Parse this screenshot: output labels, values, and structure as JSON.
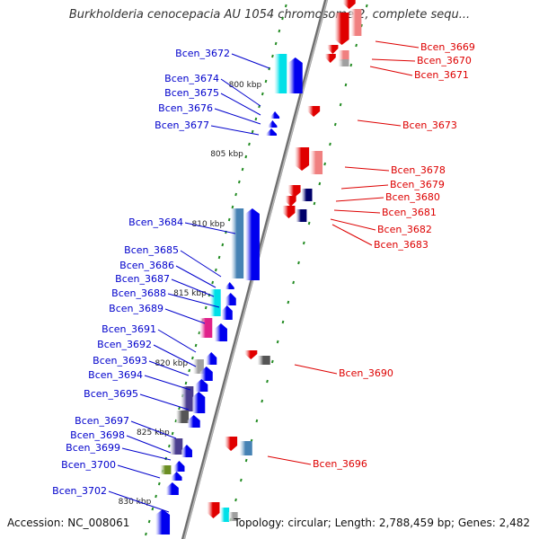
{
  "title": "Burkholderia cenocepacia AU 1054 chromosome 2, complete sequ...",
  "footer": {
    "accession": "Accession: NC_008061",
    "summary": "Topology: circular; Length: 2,788,459 bp; Genes: 2,482"
  },
  "colors": {
    "forward_label": "#0000cc",
    "reverse_label": "#dd0000",
    "backbone": "#9a9a9a",
    "tick": "#228b22"
  },
  "scale_labels": [
    "800 kbp",
    "805 kbp",
    "810 kbp",
    "815 kbp",
    "820 kbp",
    "825 kbp",
    "830 kbp"
  ],
  "forward_labels": [
    "Bcen_3672",
    "Bcen_3674",
    "Bcen_3675",
    "Bcen_3676",
    "Bcen_3677",
    "Bcen_3684",
    "Bcen_3685",
    "Bcen_3686",
    "Bcen_3687",
    "Bcen_3688",
    "Bcen_3689",
    "Bcen_3691",
    "Bcen_3692",
    "Bcen_3693",
    "Bcen_3694",
    "Bcen_3695",
    "Bcen_3697",
    "Bcen_3698",
    "Bcen_3699",
    "Bcen_3700",
    "Bcen_3702"
  ],
  "reverse_labels": [
    "Bcen_3669",
    "Bcen_3670",
    "Bcen_3671",
    "Bcen_3673",
    "Bcen_3678",
    "Bcen_3679",
    "Bcen_3680",
    "Bcen_3681",
    "Bcen_3682",
    "Bcen_3683",
    "Bcen_3690",
    "Bcen_3696"
  ]
}
